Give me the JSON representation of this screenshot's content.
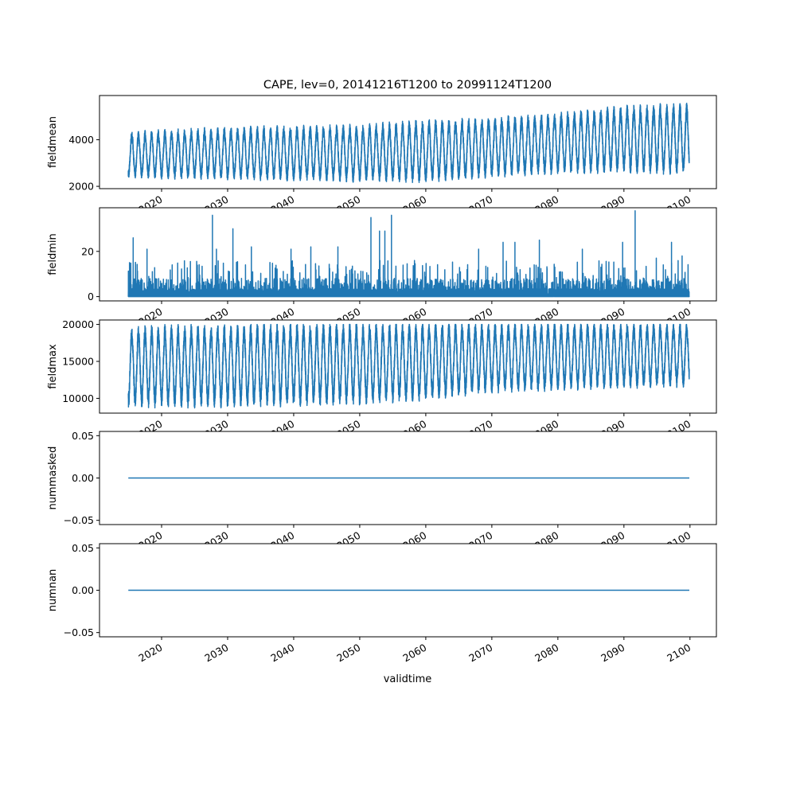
{
  "figure": {
    "title": "CAPE, lev=0, 20141216T1200 to 20991124T1200",
    "xlabel": "validtime"
  },
  "colors": {
    "series": "#1f77b4",
    "axes": "#000000",
    "background": "#ffffff"
  },
  "chart_data": [
    {
      "type": "line",
      "ylabel": "fieldmean",
      "ylim": [
        1900,
        5900
      ],
      "yticks": [
        {
          "value": 2000,
          "label": "2000"
        },
        {
          "value": 4000,
          "label": "4000"
        }
      ],
      "xlim": [
        2010.6,
        2104.0
      ],
      "xticks": [
        "2020",
        "2030",
        "2040",
        "2050",
        "2060",
        "2070",
        "2080",
        "2090",
        "2100"
      ],
      "grid": false,
      "series": [
        {
          "x_start": "2014-12-16",
          "x_end": "2099-11-24",
          "pattern": "seasonal oscillation with high-frequency noise",
          "envelope": {
            "x": [
              2015,
              2030,
              2050,
              2060,
              2070,
              2080,
              2090,
              2099
            ],
            "low": [
              2400,
              2350,
              2250,
              2250,
              2450,
              2600,
              2650,
              2600
            ],
            "high": [
              4300,
              4500,
              4600,
              4800,
              4900,
              5100,
              5400,
              5500
            ],
            "max": 5750,
            "min": 2050
          }
        }
      ]
    },
    {
      "type": "line",
      "ylabel": "fieldmin",
      "ylim": [
        -1.9,
        39.3
      ],
      "yticks": [
        {
          "value": 0,
          "label": "0"
        },
        {
          "value": 20,
          "label": "20"
        }
      ],
      "xlim": [
        2010.6,
        2104.0
      ],
      "xticks": [
        "2020",
        "2030",
        "2040",
        "2050",
        "2060",
        "2070",
        "2080",
        "2090",
        "2100"
      ],
      "grid": false,
      "series": [
        {
          "x_start": "2014-12-16",
          "x_end": "2099-11-24",
          "pattern": "near-zero baseline with sporadic spikes",
          "baseline_max": 6,
          "spikes": [
            {
              "x": 2015.7,
              "y": 26
            },
            {
              "x": 2017.8,
              "y": 21
            },
            {
              "x": 2027.7,
              "y": 36
            },
            {
              "x": 2028.3,
              "y": 21
            },
            {
              "x": 2030.8,
              "y": 30
            },
            {
              "x": 2033.6,
              "y": 22
            },
            {
              "x": 2039.6,
              "y": 21
            },
            {
              "x": 2042.6,
              "y": 22
            },
            {
              "x": 2046.7,
              "y": 22
            },
            {
              "x": 2051.7,
              "y": 35
            },
            {
              "x": 2053.0,
              "y": 29
            },
            {
              "x": 2053.8,
              "y": 29
            },
            {
              "x": 2054.8,
              "y": 36
            },
            {
              "x": 2068.0,
              "y": 21
            },
            {
              "x": 2071.7,
              "y": 24
            },
            {
              "x": 2073.5,
              "y": 24
            },
            {
              "x": 2077.2,
              "y": 25
            },
            {
              "x": 2083.7,
              "y": 21
            },
            {
              "x": 2089.8,
              "y": 24
            },
            {
              "x": 2091.7,
              "y": 38
            },
            {
              "x": 2094.9,
              "y": 17
            },
            {
              "x": 2097.2,
              "y": 24
            },
            {
              "x": 2098.8,
              "y": 18
            }
          ]
        }
      ]
    },
    {
      "type": "line",
      "ylabel": "fieldmax",
      "ylim": [
        8000,
        20600
      ],
      "yticks": [
        {
          "value": 10000,
          "label": "10000"
        },
        {
          "value": 15000,
          "label": "15000"
        },
        {
          "value": 20000,
          "label": "20000"
        }
      ],
      "xlim": [
        2010.6,
        2104.0
      ],
      "xticks": [
        "2020",
        "2030",
        "2040",
        "2050",
        "2060",
        "2070",
        "2080",
        "2090",
        "2100"
      ],
      "grid": false,
      "series": [
        {
          "x_start": "2014-12-16",
          "x_end": "2099-11-24",
          "pattern": "seasonal oscillation with high-frequency noise",
          "envelope": {
            "x": [
              2015,
              2030,
              2050,
              2060,
              2070,
              2080,
              2090,
              2099
            ],
            "low": [
              9000,
              9100,
              9400,
              10000,
              11000,
              11300,
              11600,
              11800
            ],
            "high": [
              19600,
              19800,
              20000,
              20000,
              20000,
              20000,
              20000,
              20000
            ],
            "max": 20000,
            "min": 8700
          }
        }
      ]
    },
    {
      "type": "line",
      "ylabel": "nummasked",
      "ylim": [
        -0.055,
        0.055
      ],
      "yticks": [
        {
          "value": 0.05,
          "label": "0.05"
        },
        {
          "value": 0.0,
          "label": "0.00"
        },
        {
          "value": -0.05,
          "label": "−0.05"
        }
      ],
      "xlim": [
        2010.6,
        2104.0
      ],
      "xticks": [
        "2020",
        "2030",
        "2040",
        "2050",
        "2060",
        "2070",
        "2080",
        "2090",
        "2100"
      ],
      "grid": false,
      "series": [
        {
          "x": [
            "2014-12-16",
            "2099-11-24"
          ],
          "values": [
            0,
            0
          ]
        }
      ]
    },
    {
      "type": "line",
      "ylabel": "numnan",
      "ylim": [
        -0.055,
        0.055
      ],
      "yticks": [
        {
          "value": 0.05,
          "label": "0.05"
        },
        {
          "value": 0.0,
          "label": "0.00"
        },
        {
          "value": -0.05,
          "label": "−0.05"
        }
      ],
      "xlim": [
        2010.6,
        2104.0
      ],
      "xticks": [
        "2020",
        "2030",
        "2040",
        "2050",
        "2060",
        "2070",
        "2080",
        "2090",
        "2100"
      ],
      "grid": false,
      "series": [
        {
          "x": [
            "2014-12-16",
            "2099-11-24"
          ],
          "values": [
            0,
            0
          ]
        }
      ]
    }
  ]
}
